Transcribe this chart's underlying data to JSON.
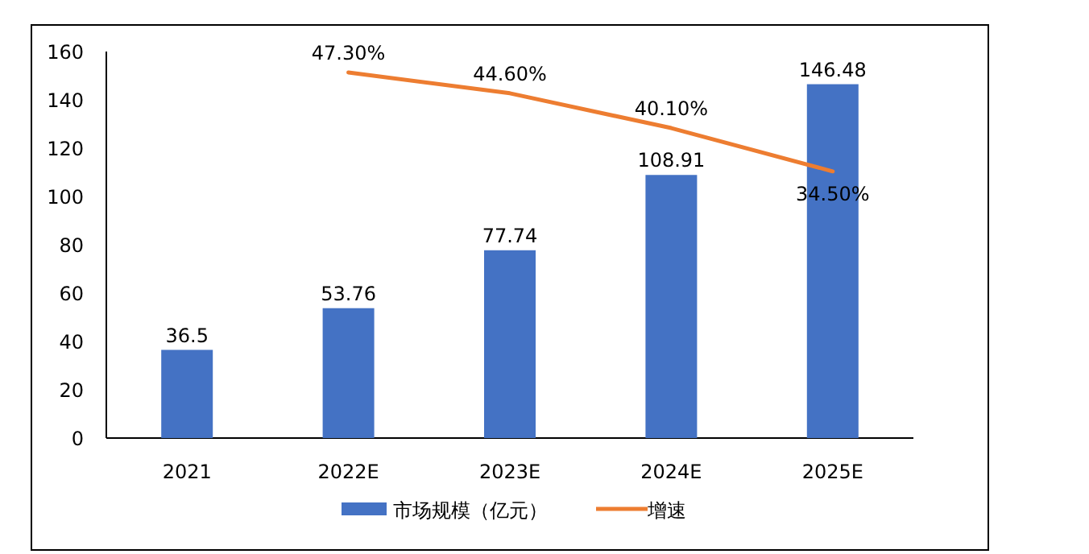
{
  "chart_data": {
    "type": "bar",
    "categories": [
      "2021",
      "2022E",
      "2023E",
      "2024E",
      "2025E"
    ],
    "series": [
      {
        "name": "市场规模（亿元）",
        "color": "#4472c4",
        "values": [
          36.5,
          53.76,
          77.74,
          108.91,
          146.48
        ],
        "value_labels": [
          "36.5",
          "53.76",
          "77.74",
          "108.91",
          "146.48"
        ]
      },
      {
        "name": "增速",
        "type": "line",
        "axis": "y2",
        "color": "#ed7d31",
        "values": [
          null,
          47.3,
          44.6,
          40.1,
          34.5
        ],
        "value_labels": [
          null,
          "47.30%",
          "44.60%",
          "40.10%",
          "34.50%"
        ]
      }
    ],
    "ylim": [
      0,
      160
    ],
    "yticks": [
      0,
      20,
      40,
      60,
      80,
      100,
      120,
      140,
      160
    ],
    "y2lim": [
      0,
      50
    ],
    "grid": false,
    "legend": "bottom",
    "marker": "none",
    "line_style": "solid"
  }
}
